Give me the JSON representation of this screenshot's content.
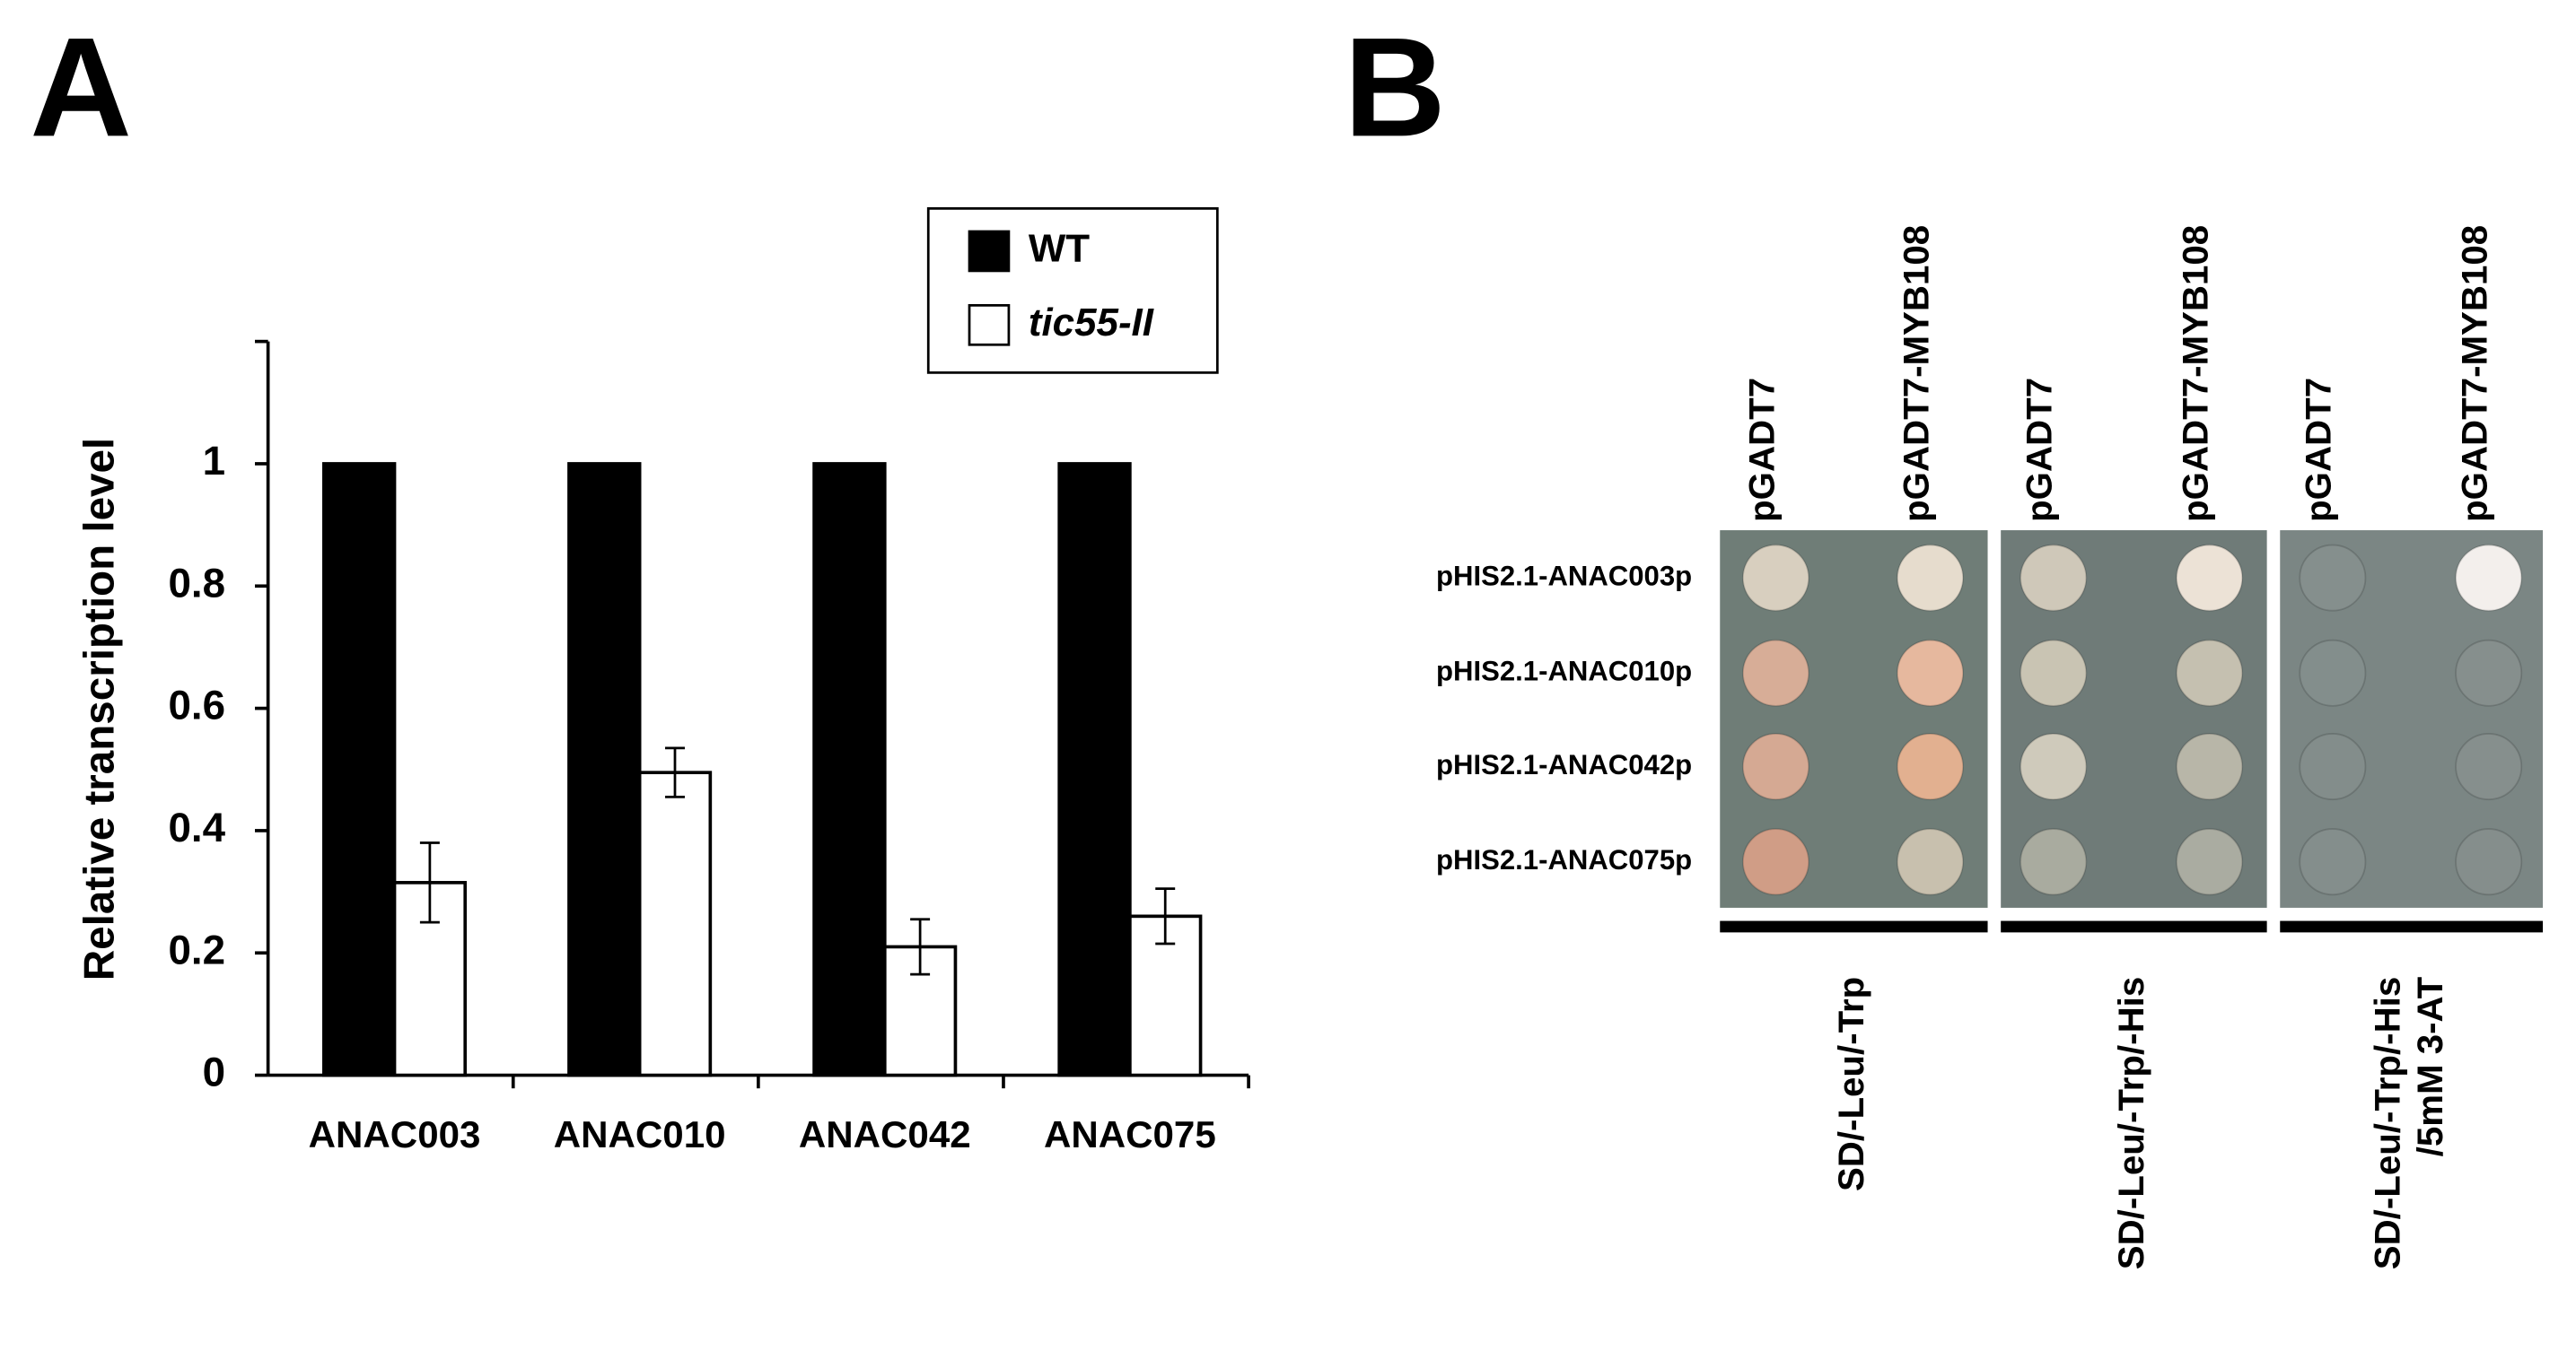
{
  "chart_data": {
    "type": "bar",
    "panel_label": "A",
    "ylabel": "Relative transcription level",
    "categories": [
      "ANAC003",
      "ANAC010",
      "ANAC042",
      "ANAC075"
    ],
    "series": [
      {
        "name": "WT",
        "color": "#000000",
        "values": [
          1,
          1,
          1,
          1
        ]
      },
      {
        "name": "tic55-II",
        "color": "#ffffff",
        "values": [
          0.315,
          0.495,
          0.21,
          0.26
        ],
        "errors": [
          0.065,
          0.04,
          0.045,
          0.045
        ]
      }
    ],
    "ylim": [
      0,
      1.2
    ],
    "yticks": [
      0,
      0.2,
      0.4,
      0.6,
      0.8,
      1
    ],
    "legend": "upper right"
  },
  "panel_b": {
    "panel_label": "B",
    "row_labels": [
      "pHIS2.1-ANAC003p",
      "pHIS2.1-ANAC010p",
      "pHIS2.1-ANAC042p",
      "pHIS2.1-ANAC075p"
    ],
    "plates": [
      {
        "columns": [
          "pGADT7",
          "pGADT7-MYB108"
        ],
        "medium": [
          "SD/-Leu/-Trp"
        ]
      },
      {
        "columns": [
          "pGADT7",
          "pGADT7-MYB108"
        ],
        "medium": [
          "SD/-Leu/-Trp/-His"
        ]
      },
      {
        "columns": [
          "pGADT7",
          "pGADT7-MYB108"
        ],
        "medium": [
          "SD/-Leu/-Trp/-His",
          "/5mM 3-AT"
        ]
      }
    ]
  }
}
